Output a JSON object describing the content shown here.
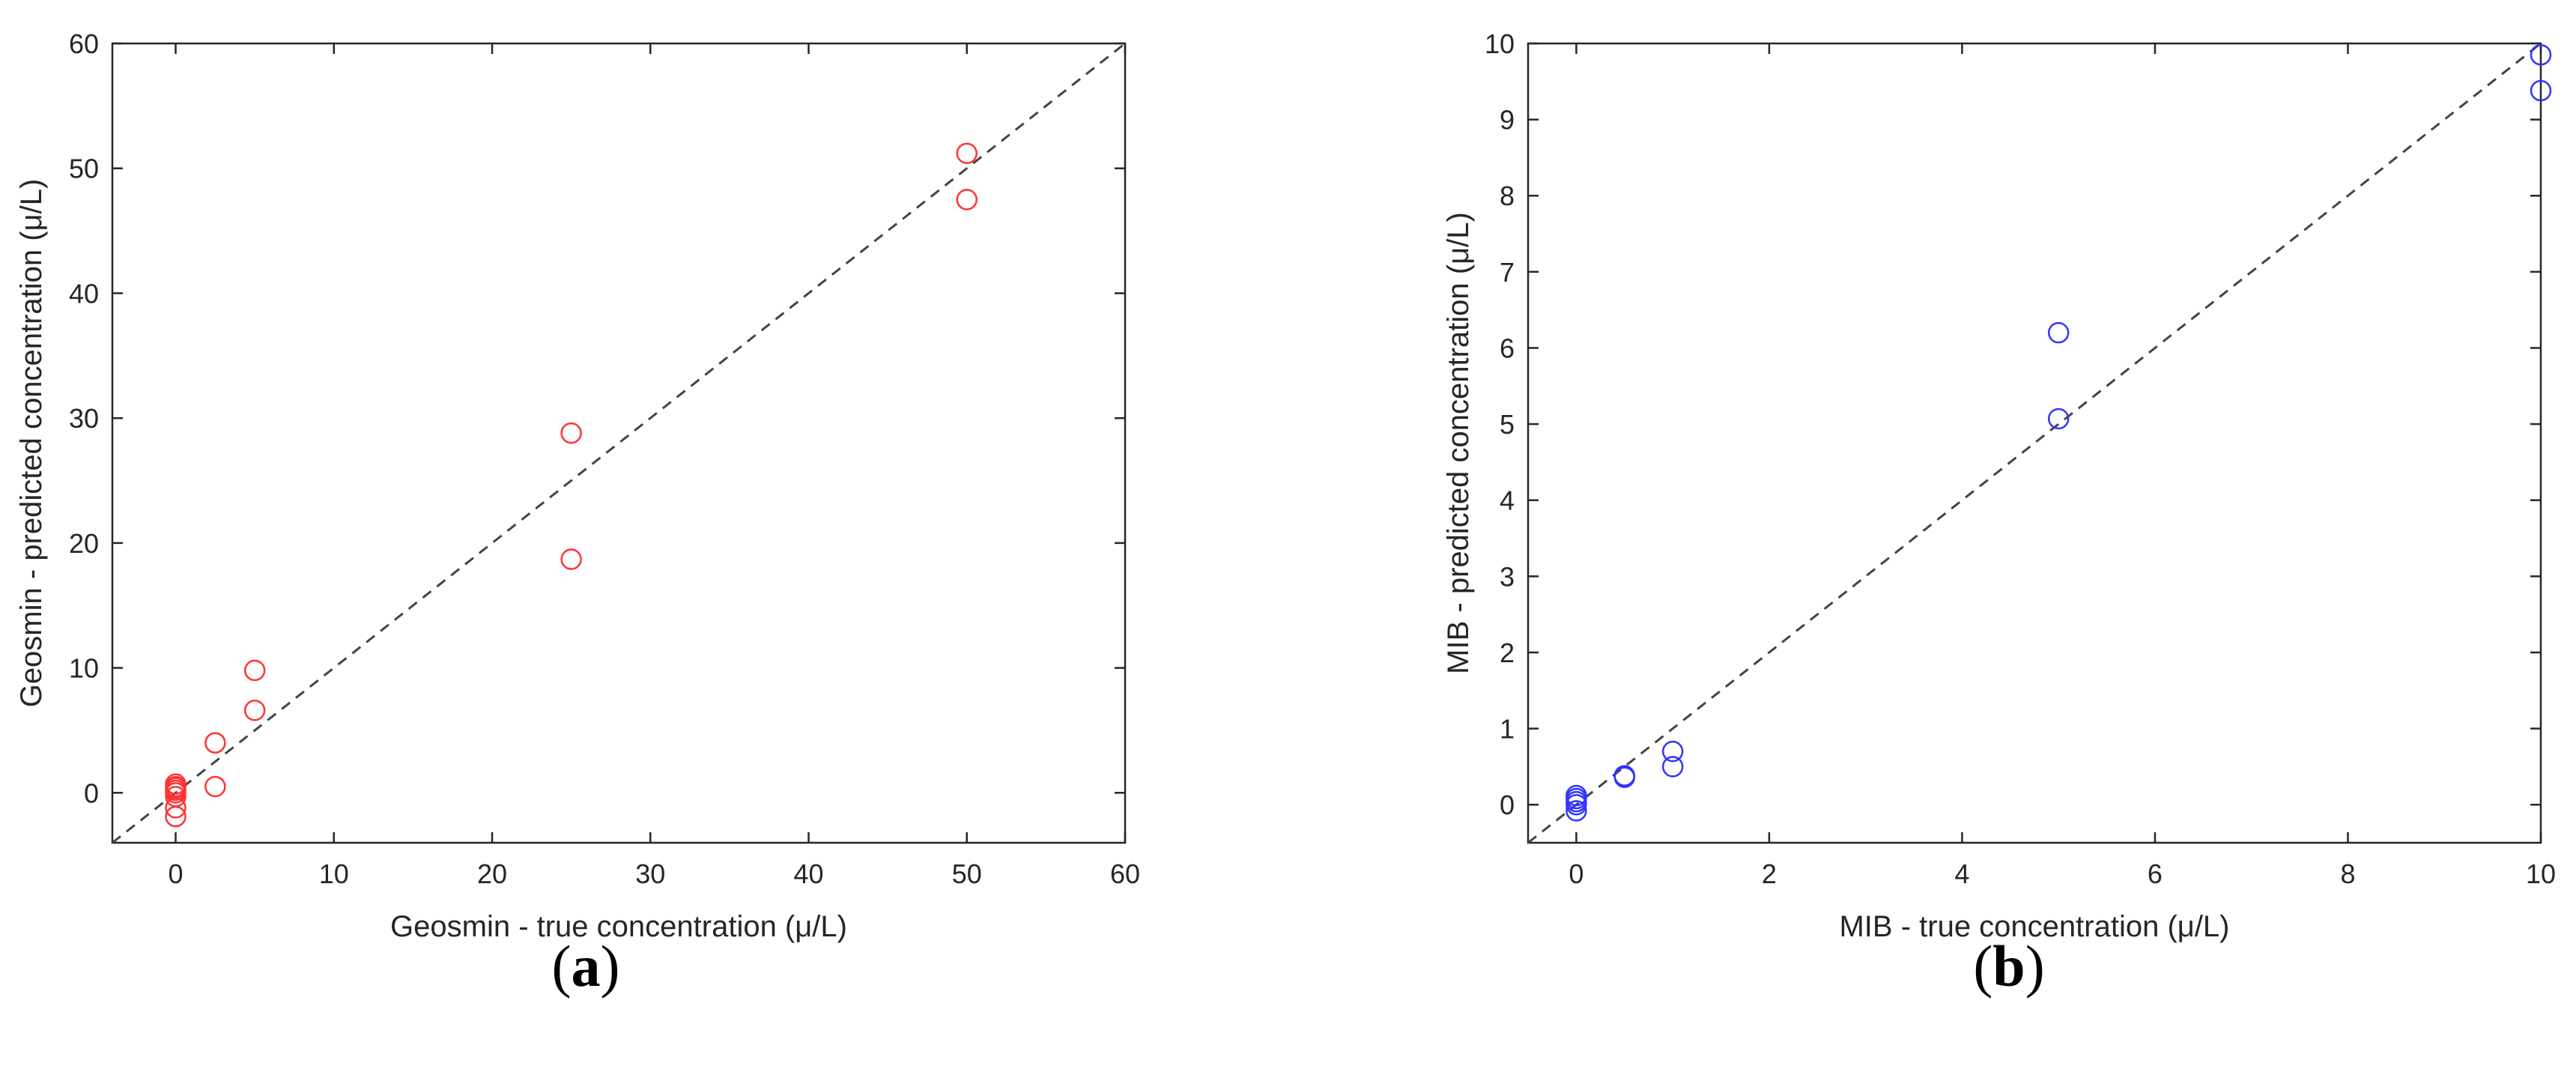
{
  "chart_data": [
    {
      "type": "scatter",
      "panel_label": "a",
      "xlabel": "Geosmin - true concentration (μ/L)",
      "ylabel": "Geosmin - predicted concentration (μ/L)",
      "xlim": [
        -4,
        60
      ],
      "ylim": [
        -4,
        60
      ],
      "xticks": [
        "0",
        "10",
        "20",
        "30",
        "40",
        "50",
        "60"
      ],
      "yticks": [
        "0",
        "10",
        "20",
        "30",
        "40",
        "50",
        "60"
      ],
      "grid": false,
      "reference_line": "y = x (dashed)",
      "series": [
        {
          "marker": "open circle",
          "color": "#ff3333",
          "x": [
            0,
            0,
            0,
            0,
            0,
            0,
            0,
            0,
            2.5,
            2.5,
            5,
            5,
            25,
            25,
            50,
            50
          ],
          "y": [
            -1.9,
            -1.2,
            -0.3,
            0,
            0.2,
            0.4,
            0.5,
            0.7,
            4.0,
            0.5,
            9.8,
            6.6,
            28.8,
            18.7,
            51.2,
            47.5
          ]
        }
      ]
    },
    {
      "type": "scatter",
      "panel_label": "b",
      "xlabel": "MIB - true concentration (μ/L)",
      "ylabel": "MIB - predicted concentration (μ/L)",
      "xlim": [
        -0.5,
        10
      ],
      "ylim": [
        -0.5,
        10
      ],
      "xticks": [
        "0",
        "2",
        "4",
        "6",
        "8",
        "10"
      ],
      "yticks": [
        "0",
        "1",
        "2",
        "3",
        "4",
        "5",
        "6",
        "7",
        "8",
        "9",
        "10"
      ],
      "grid": false,
      "reference_line": "y = x (dashed)",
      "series": [
        {
          "marker": "open circle",
          "color": "#3333ff",
          "x": [
            0,
            0,
            0,
            0,
            0,
            0.5,
            0.5,
            1,
            1,
            5,
            5,
            10,
            10
          ],
          "y": [
            -0.08,
            0,
            0.04,
            0.08,
            0.12,
            0.36,
            0.38,
            0.7,
            0.5,
            6.2,
            5.07,
            9.85,
            9.38
          ]
        }
      ]
    }
  ]
}
